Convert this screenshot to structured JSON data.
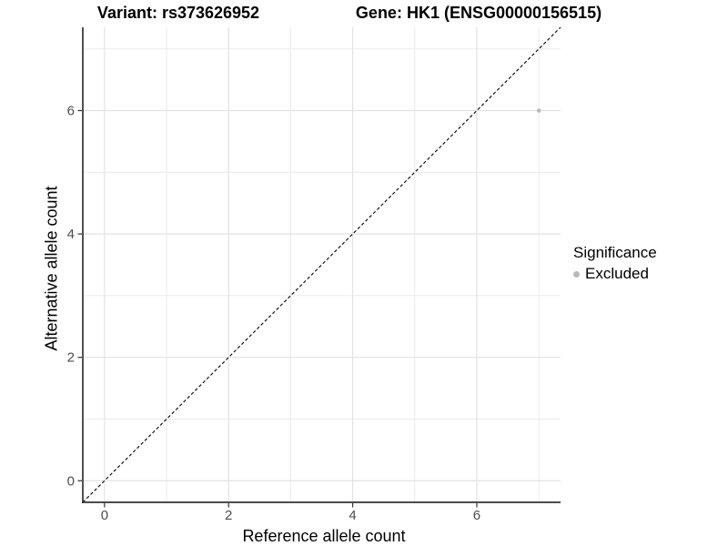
{
  "titles": {
    "variant": "Variant: rs373626952",
    "gene": "Gene: HK1 (ENSG00000156515)"
  },
  "legend": {
    "title": "Significance",
    "items": [
      {
        "label": "Excluded",
        "marker_color": "#b9b9b9"
      }
    ]
  },
  "chart_data": {
    "type": "scatter",
    "title": "",
    "xlabel": "Reference allele count",
    "ylabel": "Alternative allele count",
    "xlim": [
      -0.35,
      7.35
    ],
    "ylim": [
      -0.35,
      7.35
    ],
    "xticks": [
      0,
      2,
      4,
      6
    ],
    "yticks": [
      0,
      2,
      4,
      6
    ],
    "xticks_minor": [
      1,
      3,
      5,
      7
    ],
    "yticks_minor": [
      1,
      3,
      5,
      7
    ],
    "grid": true,
    "legend_position": "right",
    "identity_line": {
      "slope": 1,
      "intercept": 0,
      "style": "dashed",
      "color": "#000000"
    },
    "series": [
      {
        "name": "Excluded",
        "color": "#b9b9b9",
        "points": [
          {
            "x": 7,
            "y": 6
          }
        ]
      }
    ]
  },
  "style": {
    "grid_major_color": "#e2e2e2",
    "grid_minor_color": "#ebebeb",
    "axis_line_color": "#333333",
    "tick_color": "#333333",
    "tick_label_color": "#4d4d4d",
    "point_color": "#b9b9b9"
  }
}
